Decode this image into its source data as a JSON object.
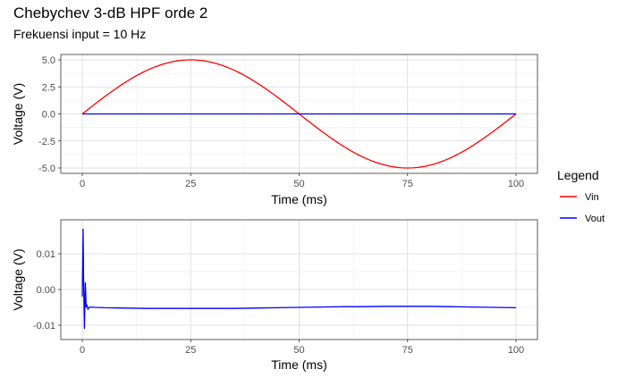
{
  "title": "Chebychev 3-dB HPF orde 2",
  "subtitle": "Frekuensi input = 10 Hz",
  "legend": {
    "title": "Legend",
    "items": [
      {
        "label": "Vin",
        "color": "#ff0000"
      },
      {
        "label": "Vout",
        "color": "#0000ff"
      }
    ]
  },
  "chart_data": [
    {
      "type": "line",
      "xlabel": "Time (ms)",
      "ylabel": "Voltage (V)",
      "xlim": [
        0,
        100
      ],
      "ylim": [
        -5,
        5
      ],
      "xticks": [
        0,
        25,
        50,
        75,
        100
      ],
      "xtick_labels": [
        "0",
        "25",
        "50",
        "75",
        "100"
      ],
      "yticks": [
        5,
        2.5,
        0,
        -2.5,
        -5
      ],
      "ytick_labels": [
        "5.0",
        "2.5",
        "0.0",
        "-2.5",
        "-5.0"
      ],
      "grid": true,
      "series": [
        {
          "name": "Vin",
          "color": "#ff0000",
          "x": [
            0,
            5,
            10,
            15,
            20,
            25,
            30,
            35,
            40,
            45,
            50,
            55,
            60,
            65,
            70,
            75,
            80,
            85,
            90,
            95,
            100
          ],
          "y": [
            0,
            1.545,
            2.939,
            4.045,
            4.755,
            5.0,
            4.755,
            4.045,
            2.939,
            1.545,
            0,
            -1.545,
            -2.939,
            -4.045,
            -4.755,
            -5.0,
            -4.755,
            -4.045,
            -2.939,
            -1.545,
            0
          ]
        },
        {
          "name": "Vout",
          "color": "#0000ff",
          "x": [
            0,
            100
          ],
          "y": [
            0,
            0
          ]
        }
      ]
    },
    {
      "type": "line",
      "xlabel": "Time (ms)",
      "ylabel": "Voltage (V)",
      "xlim": [
        0,
        100
      ],
      "ylim": [
        -0.0125,
        0.018
      ],
      "xticks": [
        0,
        25,
        50,
        75,
        100
      ],
      "xtick_labels": [
        "0",
        "25",
        "50",
        "75",
        "100"
      ],
      "yticks": [
        0.01,
        0.0,
        -0.01
      ],
      "ytick_labels": [
        "0.01",
        "0.00",
        "-0.01"
      ],
      "grid": true,
      "series": [
        {
          "name": "Vout",
          "color": "#0000ff",
          "x": [
            0,
            0.2,
            0.3,
            0.5,
            0.7,
            0.9,
            1.1,
            1.3,
            1.6,
            2.0,
            3,
            5,
            10,
            15,
            20,
            25,
            30,
            35,
            40,
            45,
            50,
            55,
            60,
            65,
            70,
            75,
            80,
            85,
            90,
            95,
            100
          ],
          "y": [
            -0.002,
            0.017,
            0.003,
            -0.011,
            0.002,
            -0.005,
            -0.0045,
            -0.0055,
            -0.005,
            -0.0049,
            -0.005,
            -0.0051,
            -0.0052,
            -0.0053,
            -0.0053,
            -0.0053,
            -0.0053,
            -0.0053,
            -0.0052,
            -0.0051,
            -0.005,
            -0.0049,
            -0.0048,
            -0.0048,
            -0.0047,
            -0.0047,
            -0.0047,
            -0.0048,
            -0.0049,
            -0.005,
            -0.0051
          ]
        }
      ]
    }
  ]
}
